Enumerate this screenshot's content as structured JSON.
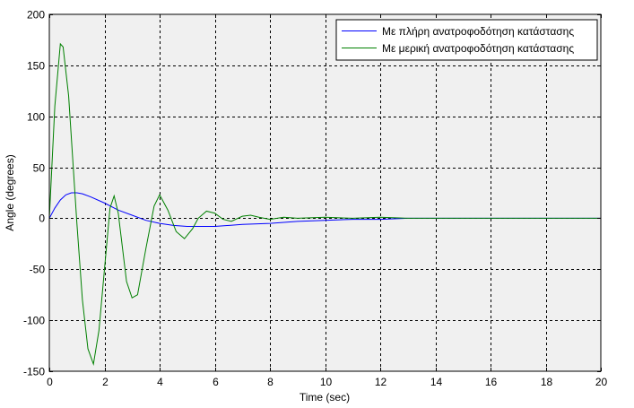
{
  "chart_data": {
    "type": "line",
    "title": "",
    "xlabel": "Time (sec)",
    "ylabel": "Angle (degrees)",
    "xlim": [
      0,
      20
    ],
    "ylim": [
      -150,
      200
    ],
    "xticks": [
      0,
      2,
      4,
      6,
      8,
      10,
      12,
      14,
      16,
      18,
      20
    ],
    "yticks": [
      -150,
      -100,
      -50,
      0,
      50,
      100,
      150,
      200
    ],
    "xtick_labels": [
      "0",
      "2",
      "4",
      "6",
      "8",
      "10",
      "12",
      "14",
      "16",
      "18",
      "20"
    ],
    "ytick_labels": [
      "-150",
      "-100",
      "-50",
      "0",
      "50",
      "100",
      "150",
      "200"
    ],
    "grid": true,
    "grid_style": "dashed",
    "legend_position": "top-right",
    "plot_background": "#f0f0f0",
    "series": [
      {
        "name": "Με πλήρη ανατροφοδότηση κατάστασης",
        "color": "#0000ff",
        "x": [
          0,
          0.2,
          0.4,
          0.6,
          0.8,
          1.0,
          1.2,
          1.5,
          2.0,
          2.5,
          3.0,
          3.5,
          4.0,
          4.5,
          5.0,
          5.5,
          6.0,
          7.0,
          8.0,
          9.0,
          10.0,
          11.0,
          12.0,
          13.0,
          14.0,
          15.0,
          16.0,
          17.0,
          18.0,
          19.0,
          20.0
        ],
        "y": [
          0,
          10,
          18,
          23,
          25,
          25,
          24,
          21,
          15,
          8,
          3,
          -2,
          -5,
          -7,
          -8,
          -8,
          -8,
          -6,
          -5,
          -3,
          -2,
          -1,
          -1,
          0,
          0,
          0,
          0,
          0,
          0,
          0,
          0
        ]
      },
      {
        "name": "Με μερική ανατροφοδότηση κατάστασης",
        "color": "#008000",
        "x": [
          0,
          0.2,
          0.4,
          0.5,
          0.7,
          1.0,
          1.2,
          1.4,
          1.6,
          1.8,
          2.0,
          2.2,
          2.35,
          2.5,
          2.8,
          3.0,
          3.2,
          3.5,
          3.8,
          4.0,
          4.3,
          4.6,
          4.9,
          5.2,
          5.4,
          5.7,
          6.0,
          6.3,
          6.6,
          7.0,
          7.3,
          7.6,
          8.0,
          8.5,
          9.0,
          10.0,
          11.0,
          12.0,
          13.0,
          14.0,
          15.0,
          16.0,
          17.0,
          18.0,
          19.0,
          20.0
        ],
        "y": [
          0,
          110,
          171,
          168,
          120,
          -5,
          -80,
          -128,
          -143,
          -110,
          -50,
          10,
          22,
          5,
          -62,
          -78,
          -75,
          -30,
          12,
          23,
          8,
          -13,
          -20,
          -10,
          0,
          7,
          5,
          -1,
          -3,
          2,
          3,
          1,
          -1,
          1,
          0,
          1,
          0,
          1,
          0,
          0,
          0,
          0,
          0,
          0,
          0,
          0
        ]
      }
    ]
  }
}
